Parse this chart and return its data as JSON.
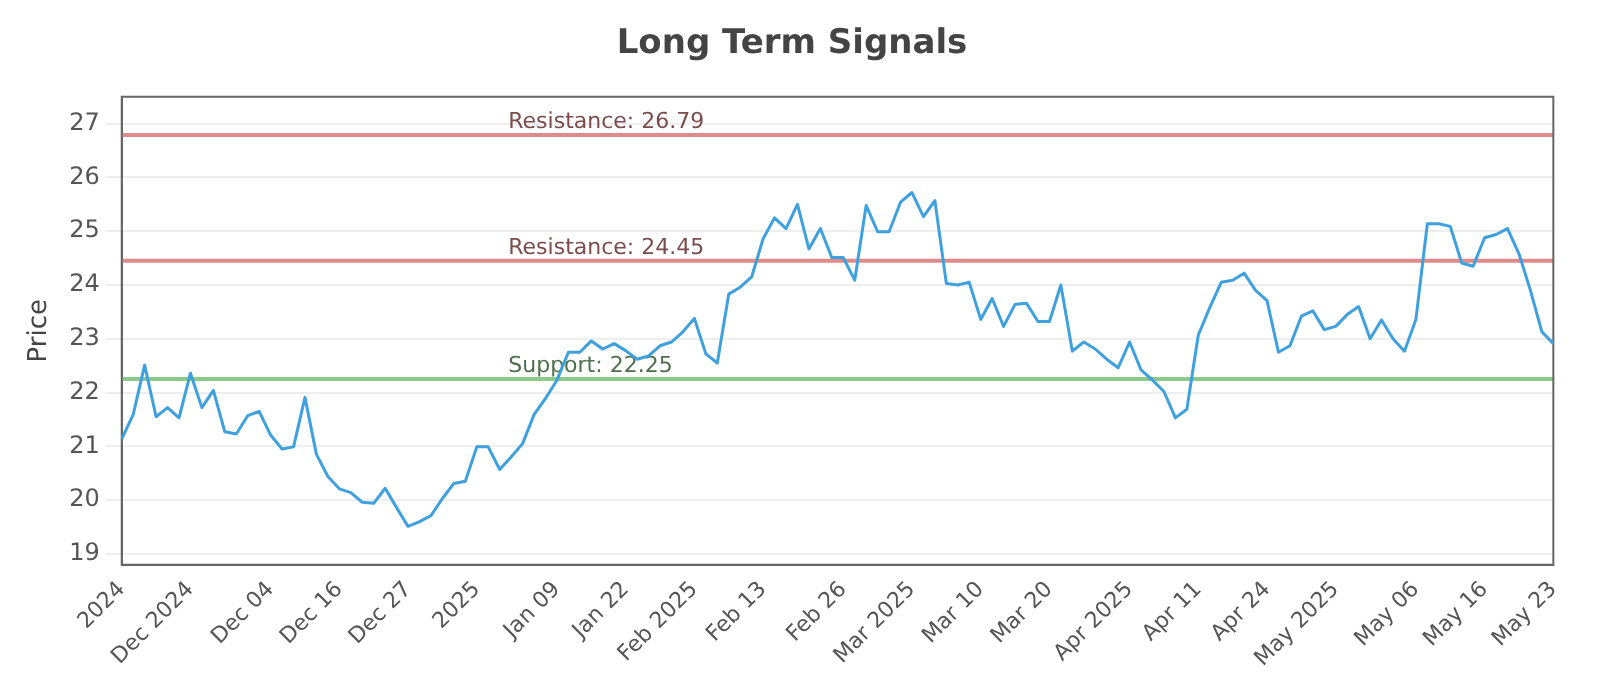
{
  "chart_data": {
    "type": "line",
    "title": "Long Term Signals",
    "ylabel": "Price",
    "categories": [
      "2024",
      null,
      null,
      null,
      null,
      null,
      "Dec 2024",
      null,
      null,
      null,
      null,
      null,
      null,
      "Dec 04",
      null,
      null,
      null,
      null,
      null,
      "Dec 16",
      null,
      null,
      null,
      null,
      null,
      "Dec 27",
      null,
      null,
      null,
      null,
      null,
      "2025",
      null,
      null,
      null,
      null,
      null,
      null,
      "Jan 09",
      null,
      null,
      null,
      null,
      null,
      "Jan 22",
      null,
      null,
      null,
      null,
      null,
      "Feb 2025",
      null,
      null,
      null,
      null,
      null,
      "Feb 13",
      null,
      null,
      null,
      null,
      null,
      null,
      "Feb 26",
      null,
      null,
      null,
      null,
      null,
      "Mar 2025",
      null,
      null,
      null,
      null,
      null,
      "Mar 10",
      null,
      null,
      null,
      null,
      null,
      "Mar 20",
      null,
      null,
      null,
      null,
      null,
      null,
      "Apr 2025",
      null,
      null,
      null,
      null,
      null,
      "Apr 11",
      null,
      null,
      null,
      null,
      null,
      "Apr 24",
      null,
      null,
      null,
      null,
      null,
      "May 2025",
      null,
      null,
      null,
      null,
      null,
      null,
      "May 06",
      null,
      null,
      null,
      null,
      null,
      "May 16",
      null,
      null,
      null,
      null,
      null,
      "May 23"
    ],
    "series": [
      {
        "color": "#3ea0dc",
        "values": [
          21.14,
          21.59,
          22.51,
          21.55,
          21.72,
          21.53,
          22.36,
          21.72,
          22.04,
          21.27,
          21.23,
          21.57,
          21.65,
          21.21,
          20.95,
          20.99,
          21.91,
          20.85,
          20.44,
          20.21,
          20.14,
          19.96,
          19.94,
          20.22,
          19.86,
          19.51,
          19.6,
          19.71,
          20.03,
          20.31,
          20.35,
          20.99,
          20.99,
          20.57,
          20.8,
          21.05,
          21.59,
          21.89,
          22.23,
          22.75,
          22.75,
          22.96,
          22.81,
          22.91,
          22.78,
          22.62,
          22.68,
          22.87,
          22.94,
          23.13,
          23.38,
          22.72,
          22.55,
          23.83,
          23.96,
          24.15,
          24.86,
          25.25,
          25.05,
          25.5,
          24.67,
          25.05,
          24.51,
          24.51,
          24.09,
          25.48,
          24.99,
          24.99,
          25.54,
          25.72,
          25.27,
          25.57,
          24.03,
          24.0,
          24.05,
          23.36,
          23.75,
          23.23,
          23.64,
          23.66,
          23.32,
          23.32,
          24.0,
          22.77,
          22.94,
          22.81,
          22.62,
          22.46,
          22.94,
          22.42,
          22.23,
          22.02,
          21.53,
          21.69,
          23.07,
          23.58,
          24.05,
          24.09,
          24.22,
          23.9,
          23.71,
          22.75,
          22.87,
          23.42,
          23.52,
          23.17,
          23.23,
          23.45,
          23.6,
          23.0,
          23.35,
          23.0,
          22.77,
          23.36,
          25.14,
          25.14,
          25.09,
          24.41,
          24.35,
          24.88,
          24.94,
          25.05,
          24.58,
          23.9,
          23.13,
          22.91
        ]
      }
    ],
    "ylim": [
      18.8,
      27.5
    ],
    "yticks": [
      19,
      20,
      21,
      22,
      23,
      24,
      25,
      26,
      27
    ],
    "grid": "y",
    "legend": false,
    "marker": "none",
    "line_style": "solid",
    "ref_lines": [
      {
        "axis": "y",
        "value": 26.79,
        "label": "Resistance: 26.79",
        "color": "#e08a8a"
      },
      {
        "axis": "y",
        "value": 24.45,
        "label": "Resistance: 24.45",
        "color": "#e08a8a"
      },
      {
        "axis": "y",
        "value": 22.25,
        "label": "Support: 22.25",
        "color": "#8cc98c"
      }
    ]
  }
}
